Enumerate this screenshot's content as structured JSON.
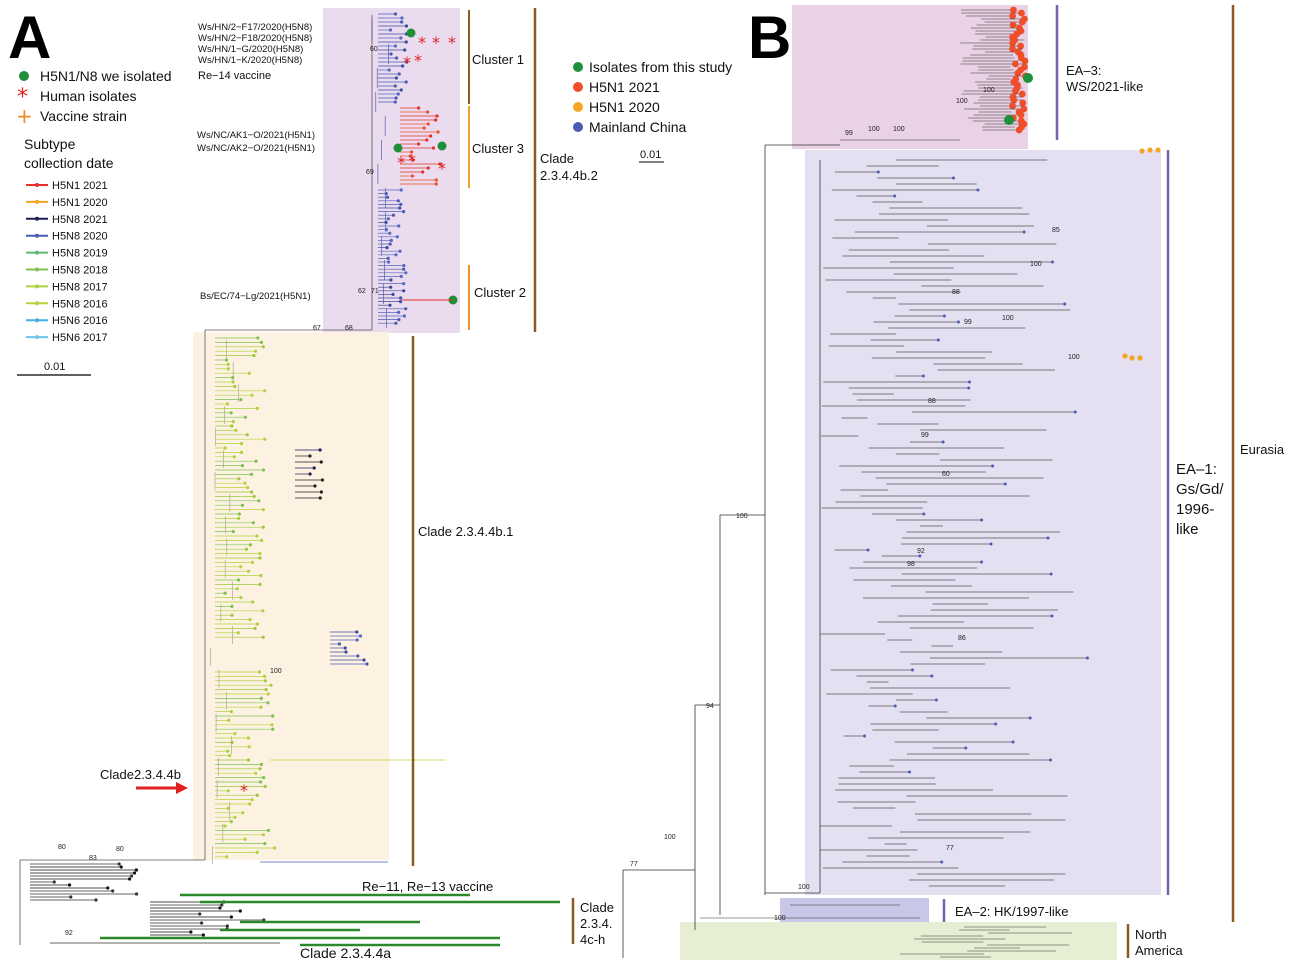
{
  "panels": {
    "a": "A",
    "b": "B"
  },
  "legend_a": {
    "isolated": "H5N1/N8 we isolated",
    "human": "Human isolates",
    "vaccine": "Vaccine strain",
    "subtype_title_1": "Subtype",
    "subtype_title_2": "collection date",
    "scale": "0.01",
    "subtypes": [
      {
        "label": "H5N1 2021",
        "color": "#e8302a"
      },
      {
        "label": "H5N1 2020",
        "color": "#f5a524"
      },
      {
        "label": "H5N8 2021",
        "color": "#1c1f5a"
      },
      {
        "label": "H5N8 2020",
        "color": "#4a5cb2"
      },
      {
        "label": "H5N8 2019",
        "color": "#5fb677"
      },
      {
        "label": "H5N8 2018",
        "color": "#7cc250"
      },
      {
        "label": "H5N8 2017",
        "color": "#a9d43b"
      },
      {
        "label": "H5N8 2016",
        "color": "#b7d23c"
      },
      {
        "label": "H5N6 2016",
        "color": "#3fb0e3"
      },
      {
        "label": "H5N6 2017",
        "color": "#6ac6ea"
      }
    ]
  },
  "taxa_a": {
    "t1": "Ws/HN/2−F17/2020(H5N8)",
    "t2": "Ws/HN/2−F18/2020(H5N8)",
    "t3": "Ws/HN/1−G/2020(H5N8)",
    "t4": "Ws/HN/1−K/2020(H5N8)",
    "re14": "Re−14 vaccine",
    "nc1": "Ws/NC/AK1−O/2021(H5N1)",
    "nc2": "Ws/NC/AK2−O/2021(H5N1)",
    "bs": "Bs/EC/74−Lg/2021(H5N1)",
    "re11": "Re−11, Re−13 vaccine"
  },
  "clades_a": {
    "c1": "Cluster 1",
    "c3": "Cluster 3",
    "c2": "Cluster 2",
    "b2_1": "Clade",
    "b2_2": "2.3.4.4b.2",
    "b1": "Clade 2.3.4.4b.1",
    "clade_b": "Clade2.3.4.4b",
    "c4ch_1": "Clade",
    "c4ch_2": "2.3.4.",
    "c4ch_3": "4c-h",
    "c4a": "Clade 2.3.4.4a"
  },
  "boot_a": {
    "b60": "60",
    "b69": "69",
    "b62": "62",
    "b71": "71",
    "b67": "67",
    "b68": "68",
    "b100": "100",
    "b80a": "80",
    "b83": "83",
    "b80b": "80",
    "b92": "92"
  },
  "legend_b": {
    "items": [
      {
        "label": "Isolates from this study",
        "color": "#1f8f3a"
      },
      {
        "label": "H5N1 2021",
        "color": "#ef4e2a"
      },
      {
        "label": "H5N1 2020",
        "color": "#f5a524"
      },
      {
        "label": "Mainland China",
        "color": "#4a5cb2"
      }
    ],
    "scale": "0.01"
  },
  "clades_b": {
    "ea3_1": "EA–3:",
    "ea3_2": "WS/2021-like",
    "ea1_1": "EA–1:",
    "ea1_2": "Gs/Gd/",
    "ea1_3": "1996-",
    "ea1_4": "like",
    "ea2": "EA–2: HK/1997-like",
    "eurasia": "Eurasia",
    "na_1": "North",
    "na_2": "America"
  },
  "boot_b": {
    "b99": "99",
    "b100a": "100",
    "b100b": "100",
    "b100c": "100",
    "b100d": "100",
    "b85": "85",
    "b100e": "100",
    "b88": "88",
    "b100f": "100",
    "b99b": "99",
    "b100g": "100",
    "b88b": "88",
    "b99c": "99",
    "b60": "60",
    "b92": "92",
    "b98": "98",
    "b86": "86",
    "b77": "77",
    "b94": "94",
    "b100h": "100",
    "b100i": "100",
    "b77b": "77",
    "b100j": "100",
    "b100k": "100"
  }
}
